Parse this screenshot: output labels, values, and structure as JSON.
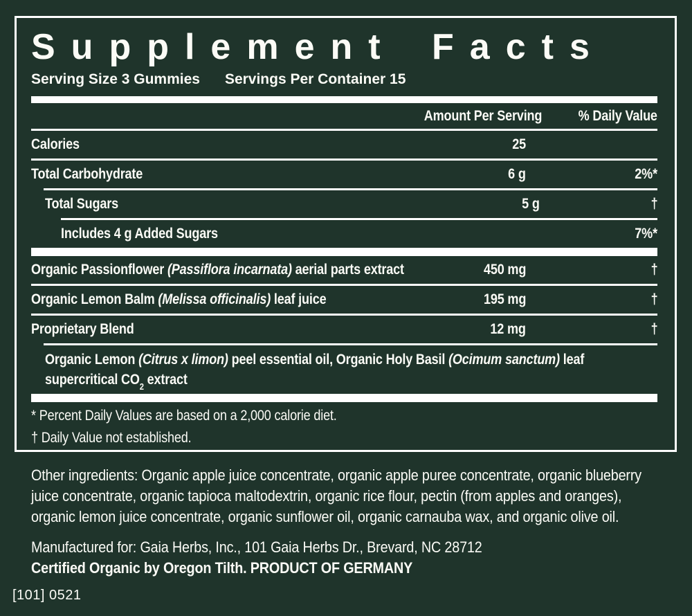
{
  "colors": {
    "background": "#1f342b",
    "ink": "#ffffff"
  },
  "panel": {
    "title": "Supplement Facts",
    "serving_size": "Serving Size 3 Gummies",
    "servings_per_container": "Servings Per Container 15",
    "col_amount": "Amount Per Serving",
    "col_dv": "% Daily Value",
    "rows": [
      {
        "name": [
          {
            "t": "Calories"
          }
        ],
        "amount": "25",
        "dv": "",
        "indent": 0
      },
      {
        "rule": "thin",
        "name": [
          {
            "t": "Total Carbohydrate"
          }
        ],
        "amount": "6 g",
        "dv": "2%*",
        "indent": 0
      },
      {
        "rule": "thin",
        "rule_indent": 1,
        "name": [
          {
            "t": "Total Sugars"
          }
        ],
        "amount": "5 g",
        "dv": "†",
        "indent": 1
      },
      {
        "rule": "thin",
        "rule_indent": 2,
        "name": [
          {
            "t": "Includes 4 g Added Sugars"
          }
        ],
        "amount": "",
        "dv": "7%*",
        "indent": 2
      },
      {
        "rule": "thick",
        "name": [
          {
            "t": "Organic Passionflower "
          },
          {
            "t": "(Passiflora incarnata)",
            "i": true
          },
          {
            "t": " aerial parts extract"
          }
        ],
        "amount": "450 mg",
        "dv": "†",
        "indent": 0
      },
      {
        "rule": "thin",
        "name": [
          {
            "t": "Organic Lemon Balm "
          },
          {
            "t": "(Melissa officinalis)",
            "i": true
          },
          {
            "t": " leaf juice"
          }
        ],
        "amount": "195 mg",
        "dv": "†",
        "indent": 0
      },
      {
        "rule": "thin",
        "name": [
          {
            "t": "Proprietary Blend"
          }
        ],
        "amount": "12 mg",
        "dv": "†",
        "indent": 0
      }
    ],
    "blend_description": [
      {
        "t": "Organic Lemon "
      },
      {
        "t": "(Citrus x limon)",
        "i": true
      },
      {
        "t": " peel essential oil, Organic Holy Basil "
      },
      {
        "t": "(Ocimum sanctum)",
        "i": true
      },
      {
        "t": " leaf"
      },
      {
        "br": true
      },
      {
        "t": "supercritical CO"
      },
      {
        "t": "2",
        "sub": true
      },
      {
        "t": " extract"
      }
    ],
    "footnotes": [
      "* Percent Daily Values are based on a 2,000 calorie diet.",
      "† Daily Value not established."
    ]
  },
  "other_ingredients": {
    "lines": [
      "Other ingredients: Organic apple juice concentrate, organic apple puree concentrate, organic blueberry",
      "juice concentrate, organic tapioca maltodextrin, organic rice flour, pectin (from apples and oranges),",
      "organic lemon juice concentrate, organic sunflower oil, organic carnauba wax, and organic olive oil."
    ]
  },
  "manufacturer": {
    "line1": "Manufactured for: Gaia Herbs, Inc., 101 Gaia Herbs Dr., Brevard, NC 28712",
    "line2": "Certified Organic by Oregon Tilth. PRODUCT OF GERMANY"
  },
  "lot_code": "[101] 0521"
}
